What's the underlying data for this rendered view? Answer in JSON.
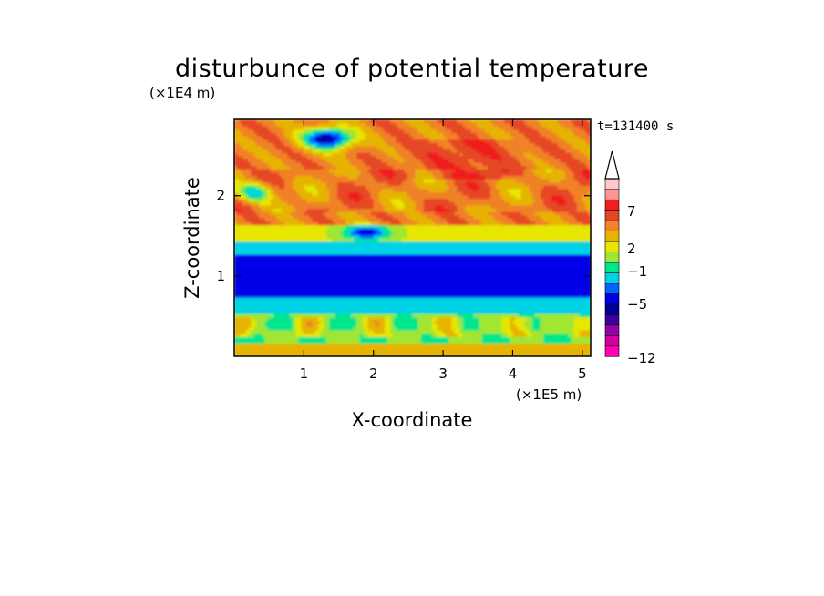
{
  "chart_data": {
    "type": "heatmap",
    "title": "disturbunce of potential temperature",
    "xlabel": "X-coordinate",
    "ylabel": "Z-coordinate",
    "x_unit": "(×1E5 m)",
    "y_unit": "(×1E4 m)",
    "time_label": "t=131400 s",
    "xlim": [
      0,
      5.12
    ],
    "ylim": [
      0,
      2.95
    ],
    "xticks": [
      "1",
      "2",
      "3",
      "4",
      "5"
    ],
    "yticks": [
      "1",
      "2"
    ],
    "colorbar": {
      "tick_labels": [
        "7",
        "2",
        "−1",
        "−5",
        "−12"
      ],
      "colors": [
        "#ff00b4",
        "#d200a0",
        "#9600aa",
        "#3c00a0",
        "#000096",
        "#0000e6",
        "#0064ff",
        "#00d2e6",
        "#00e68c",
        "#a0e632",
        "#e6e600",
        "#e6b400",
        "#f08228",
        "#e64628",
        "#f01e1e",
        "#ff9696",
        "#ffc8c8",
        "#ffffff"
      ],
      "extend": "max"
    },
    "pattern": "horizontal bands: warm/orange-red upper layer with tilted wave streaks, blue-purple cold patch near x=1.3, z=2.7; deep blue cold band near z=1; cyan/green/yellow lower layer with small yellow patches near ground"
  }
}
